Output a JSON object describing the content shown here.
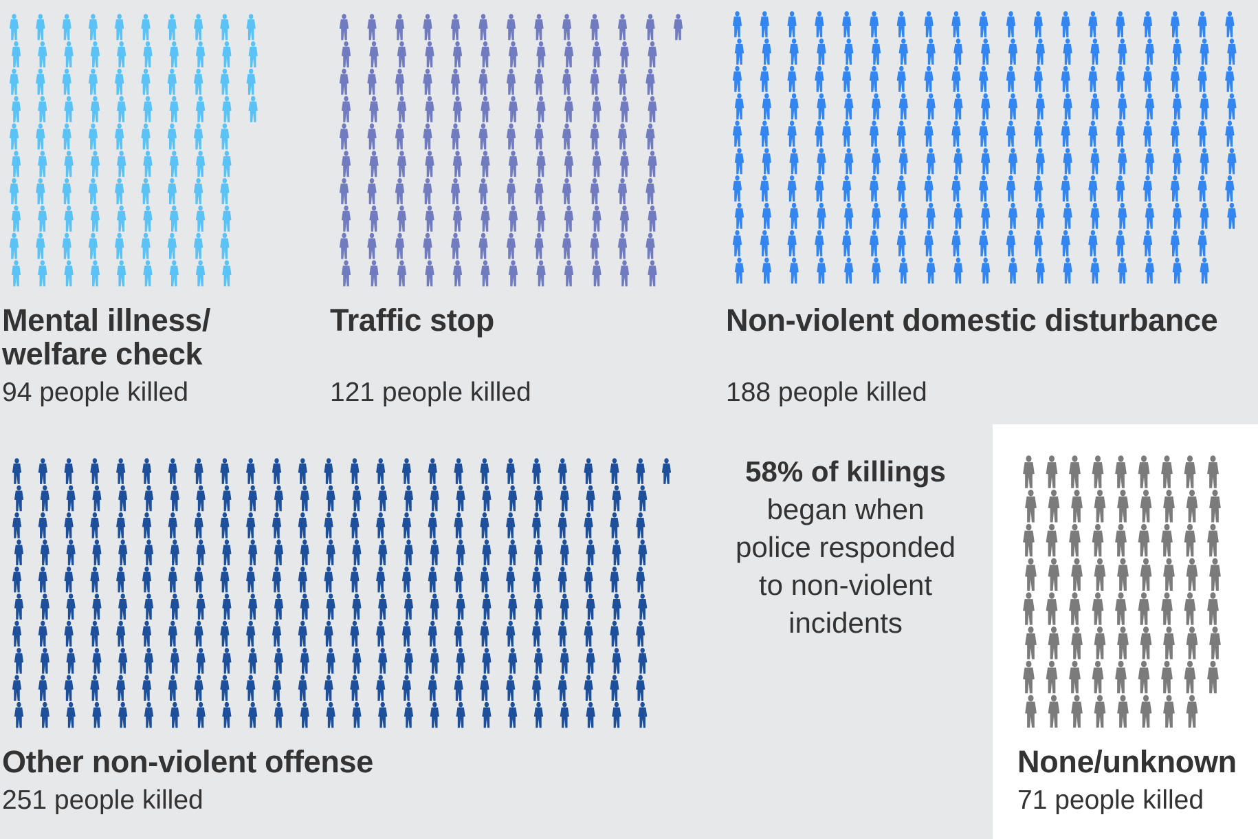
{
  "chart_data": {
    "type": "pictogram",
    "unit": "person icon = 1 person killed",
    "colors": {
      "background_main": "#e7e8ea",
      "background_highlight": "#ffffff"
    },
    "groups": [
      {
        "name": "Mental illness/ welfare check",
        "title_lines": [
          "Mental illness/",
          "welfare check"
        ],
        "count": 94,
        "count_label": "94 people killed",
        "color": "#5bc2f5"
      },
      {
        "name": "Traffic stop",
        "title_lines": [
          "Traffic stop"
        ],
        "count": 121,
        "count_label": "121 people killed",
        "color": "#717cc0"
      },
      {
        "name": "Non-violent domestic disturbance",
        "title_lines": [
          "Non-violent domestic disturbance"
        ],
        "count": 188,
        "count_label": "188 people killed",
        "color": "#3386f0"
      },
      {
        "name": "Other non-violent offense",
        "title_lines": [
          "Other non-violent offense"
        ],
        "count": 251,
        "count_label": "251 people killed",
        "color": "#1d4f9b"
      },
      {
        "name": "None/unknown",
        "title_lines": [
          "None/unknown"
        ],
        "count": 71,
        "count_label": "71 people killed",
        "color": "#7b7b7b"
      }
    ],
    "callout": {
      "bold": "58% of killings",
      "lines": [
        "began when",
        "police responded",
        "to non-violent",
        "incidents"
      ]
    }
  }
}
